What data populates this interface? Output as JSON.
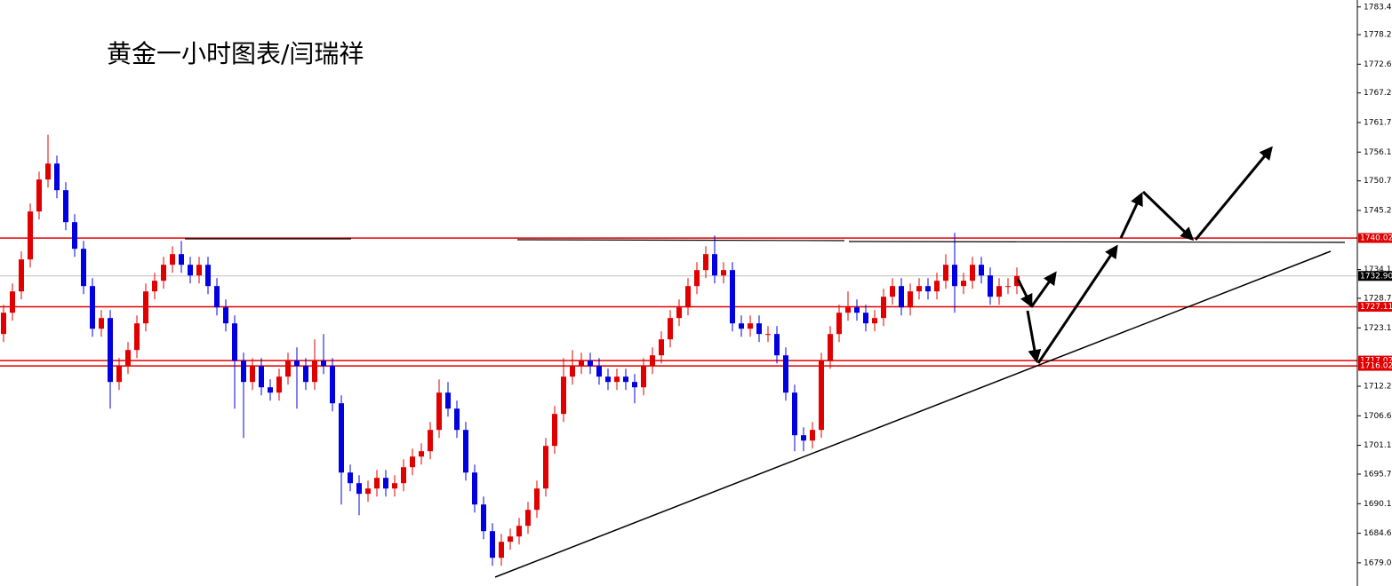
{
  "chart_data": {
    "type": "candlestick",
    "title": "黄金一小时图表/闫瑞祥",
    "up_color": "#e00000",
    "down_color": "#0000e0",
    "open": [
      1722,
      1726,
      1730,
      1736,
      1745,
      1751,
      1754,
      1749,
      1743,
      1738,
      1731,
      1723,
      1725,
      1713,
      1716,
      1719,
      1724,
      1730,
      1732,
      1735,
      1737,
      1735,
      1733,
      1735,
      1731,
      1727,
      1724,
      1717,
      1713,
      1716,
      1712,
      1711,
      1714,
      1717,
      1716,
      1713,
      1717,
      1716,
      1709,
      1696,
      1694,
      1692,
      1693,
      1695,
      1693,
      1694,
      1697,
      1699,
      1700,
      1704,
      1711,
      1708,
      1704,
      1696,
      1690,
      1685,
      1680,
      1683,
      1684,
      1686,
      1689,
      1693,
      1701,
      1707,
      1714,
      1716,
      1717,
      1716,
      1714,
      1713,
      1714,
      1713,
      1712,
      1716,
      1718,
      1721,
      1725,
      1727,
      1731,
      1734,
      1737,
      1733,
      1734,
      1724,
      1723,
      1724,
      1722,
      1722,
      1718,
      1711,
      1703,
      1702,
      1704,
      1717,
      1722,
      1726,
      1727,
      1726,
      1724,
      1725,
      1729,
      1731,
      1727,
      1730,
      1731,
      1730,
      1732,
      1735,
      1731,
      1732,
      1735,
      1733,
      1729,
      1731,
      1731
    ],
    "high": [
      1727.5,
      1731.5,
      1737.5,
      1746.5,
      1752.5,
      1759.4,
      1755.5,
      1750.5,
      1744.5,
      1739.5,
      1732.5,
      1726.5,
      1726.5,
      1717.5,
      1720.5,
      1725.5,
      1731.5,
      1733.5,
      1736.5,
      1738.5,
      1739.5,
      1736.5,
      1736.5,
      1736.5,
      1732.5,
      1728.5,
      1725.5,
      1718.5,
      1717.5,
      1717.5,
      1713.5,
      1715.5,
      1718.5,
      1719.5,
      1717.5,
      1721,
      1722,
      1717.5,
      1710.5,
      1697.5,
      1695.5,
      1694.5,
      1696.5,
      1696.5,
      1695.5,
      1698.5,
      1700.5,
      1701.5,
      1705.5,
      1713.5,
      1713,
      1709.5,
      1705.5,
      1697.5,
      1691.5,
      1686.5,
      1684.5,
      1685.5,
      1687.5,
      1690.5,
      1694.5,
      1702.5,
      1708.5,
      1717.5,
      1719,
      1718.5,
      1718.5,
      1717.5,
      1715.5,
      1715.5,
      1715.5,
      1714.5,
      1717.5,
      1719.5,
      1722.5,
      1726.5,
      1728.5,
      1732.5,
      1735.5,
      1738.5,
      1740.5,
      1735.5,
      1735.5,
      1725.5,
      1725.5,
      1725.5,
      1723.5,
      1723.5,
      1719.5,
      1712.5,
      1704.5,
      1705.5,
      1718.5,
      1723.5,
      1727.5,
      1730,
      1728.5,
      1727.5,
      1726.5,
      1730.5,
      1732.5,
      1732.5,
      1731.5,
      1732.5,
      1732.5,
      1733.5,
      1737,
      1741,
      1733.5,
      1736.5,
      1736.5,
      1734.5,
      1732.5,
      1732.5,
      1734.5
    ],
    "low": [
      1720.5,
      1724.5,
      1728.5,
      1734.5,
      1743.5,
      1749.5,
      1747.5,
      1741.5,
      1736.5,
      1729.5,
      1721.5,
      1721.5,
      1708,
      1711.5,
      1714.5,
      1717.5,
      1722.5,
      1728.5,
      1730.5,
      1733.5,
      1733.5,
      1731.5,
      1731.5,
      1729.5,
      1725.5,
      1722.5,
      1708,
      1702.5,
      1711.5,
      1710.5,
      1709.5,
      1709.5,
      1712.5,
      1708,
      1711.5,
      1711.5,
      1714.5,
      1707.5,
      1690,
      1692.5,
      1688,
      1690.5,
      1691.5,
      1691.5,
      1691.5,
      1692.5,
      1695.5,
      1697.5,
      1698.5,
      1702.5,
      1706.5,
      1702.5,
      1694.5,
      1688.5,
      1683.5,
      1678.5,
      1678.5,
      1681.5,
      1682.5,
      1684.5,
      1687.5,
      1691.5,
      1699.5,
      1705.5,
      1712.5,
      1714.5,
      1714.5,
      1712.5,
      1711.5,
      1711.5,
      1711.5,
      1709,
      1710.5,
      1714.5,
      1716.5,
      1719.5,
      1723.5,
      1725.5,
      1729.5,
      1732.5,
      1731.5,
      1731.5,
      1722.5,
      1721.5,
      1721.5,
      1720.5,
      1720.5,
      1716.5,
      1709.5,
      1700,
      1700,
      1700.5,
      1702.5,
      1715.5,
      1720.5,
      1724.5,
      1724.5,
      1722.5,
      1722.5,
      1723.5,
      1727.5,
      1725.5,
      1725.5,
      1728.5,
      1728.5,
      1728.5,
      1730.5,
      1726,
      1729.5,
      1730.5,
      1731.5,
      1727.5,
      1727.5,
      1729.5,
      1729.5
    ],
    "close": [
      1726,
      1730,
      1736,
      1745,
      1751,
      1754,
      1749,
      1743,
      1738,
      1731,
      1723,
      1725,
      1713,
      1716,
      1719,
      1724,
      1730,
      1732,
      1735,
      1737,
      1735,
      1733,
      1735,
      1731,
      1727,
      1724,
      1717,
      1713,
      1716,
      1712,
      1711,
      1714,
      1717,
      1716,
      1713,
      1717,
      1716,
      1709,
      1696,
      1694,
      1692,
      1693,
      1695,
      1693,
      1694,
      1697,
      1699,
      1700,
      1704,
      1711,
      1708,
      1704,
      1696,
      1690,
      1685,
      1680,
      1683,
      1684,
      1686,
      1689,
      1693,
      1701,
      1707,
      1714,
      1716,
      1717,
      1716,
      1714,
      1713,
      1714,
      1713,
      1712,
      1716,
      1718,
      1721,
      1725,
      1727,
      1731,
      1734,
      1737,
      1733,
      1734,
      1724,
      1723,
      1724,
      1722,
      1722,
      1718,
      1711,
      1703,
      1702,
      1704,
      1717,
      1722,
      1726,
      1727,
      1726,
      1724,
      1725,
      1729,
      1731,
      1727,
      1730,
      1731,
      1730,
      1732,
      1735,
      1731,
      1732,
      1735,
      1733,
      1729,
      1731,
      1731,
      1732.9
    ],
    "ylim": [
      1674.7,
      1784.7
    ],
    "yticks": [
      {
        "value": 1783.4,
        "label": "1783.40"
      },
      {
        "value": 1778.2,
        "label": "1778.20"
      },
      1772.65,
      1767.25,
      {
        "value": 1761.7,
        "label": "1761.70"
      },
      1756.15,
      1750.75,
      {
        "value": 1745.2,
        "label": "1745.20"
      },
      {
        "value": 1734.1,
        "label": "1734.10"
      },
      {
        "value": 1728.7,
        "label": "1728.70"
      },
      1723.15,
      {
        "value": 1712.2,
        "label": "1712.20"
      },
      1706.65,
      {
        "value": 1701.1,
        "label": "1701.10"
      },
      {
        "value": 1695.7,
        "label": "1695.70"
      },
      1690.15,
      {
        "value": 1684.6,
        "label": "1684.60"
      },
      1679.05
    ],
    "levels": [
      {
        "value": 1740.02,
        "color": "#e00000"
      },
      {
        "value": 1732.9,
        "label": "1732.90",
        "color": "#000000"
      },
      {
        "value": 1727.11,
        "color": "#e00000"
      },
      {
        "value": 1717.02,
        "color": "#e00000"
      },
      {
        "value": 1716.02,
        "color": "#e00000"
      }
    ]
  }
}
